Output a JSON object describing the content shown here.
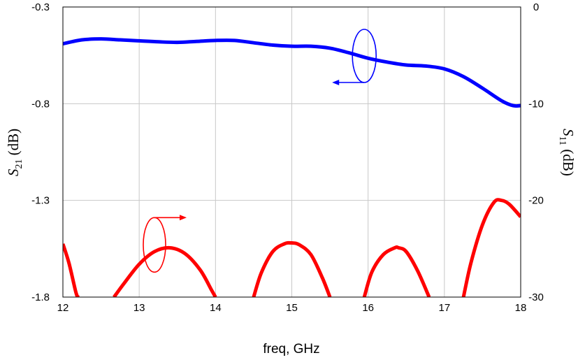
{
  "chart_data": {
    "type": "line",
    "title": "",
    "xlabel": "freq, GHz",
    "ylabel_left": {
      "symbol": "S",
      "subscript": "21",
      "unit": " (dB)"
    },
    "ylabel_right": {
      "symbol": "S",
      "subscript": "11",
      "unit": " (dB)"
    },
    "xlim": [
      12,
      18
    ],
    "ylim_left": [
      -1.8,
      -0.3
    ],
    "ylim_right": [
      -30,
      0
    ],
    "x_ticks": [
      "12",
      "13",
      "14",
      "15",
      "16",
      "17",
      "18"
    ],
    "y_ticks_left": [
      "-0.3",
      "-0.8",
      "-1.3",
      "-1.8"
    ],
    "y_ticks_right": [
      "0",
      "-10",
      "-20",
      "-30"
    ],
    "grid": true,
    "series": [
      {
        "axis": "left",
        "color": "#0000ff",
        "x": [
          12.0,
          12.25,
          12.5,
          12.75,
          13.0,
          13.25,
          13.5,
          13.75,
          14.0,
          14.25,
          14.5,
          14.75,
          15.0,
          15.25,
          15.5,
          15.75,
          16.0,
          16.25,
          16.5,
          16.75,
          17.0,
          17.25,
          17.5,
          17.75,
          17.9,
          18.0
        ],
        "y": [
          -0.49,
          -0.47,
          -0.465,
          -0.47,
          -0.475,
          -0.48,
          -0.483,
          -0.478,
          -0.473,
          -0.473,
          -0.485,
          -0.497,
          -0.503,
          -0.503,
          -0.513,
          -0.537,
          -0.565,
          -0.585,
          -0.6,
          -0.605,
          -0.62,
          -0.66,
          -0.72,
          -0.785,
          -0.81,
          -0.81
        ]
      },
      {
        "axis": "right",
        "color": "#ff0000",
        "segments": [
          {
            "x": [
              12.0,
              12.08,
              12.17,
              12.2
            ],
            "y": [
              -24.5,
              -26.5,
              -29.5,
              -30
            ]
          },
          {
            "x": [
              12.67,
              12.8,
              13.0,
              13.2,
              13.4,
              13.6,
              13.8,
              13.95,
              14.0
            ],
            "y": [
              -30,
              -28.6,
              -26.6,
              -25.3,
              -24.9,
              -25.5,
              -27.2,
              -29.3,
              -30
            ]
          },
          {
            "x": [
              14.5,
              14.6,
              14.75,
              14.9,
              15.0,
              15.1,
              15.25,
              15.4,
              15.5
            ],
            "y": [
              -30,
              -27.5,
              -25.3,
              -24.5,
              -24.4,
              -24.6,
              -25.6,
              -28.0,
              -30
            ]
          },
          {
            "x": [
              15.95,
              16.05,
              16.2,
              16.35,
              16.4,
              16.5,
              16.65,
              16.8
            ],
            "y": [
              -30,
              -27.4,
              -25.6,
              -24.9,
              -24.9,
              -25.3,
              -27.3,
              -30
            ]
          },
          {
            "x": [
              17.25,
              17.35,
              17.5,
              17.65,
              17.75,
              17.85,
              18.0
            ],
            "y": [
              -30,
              -26.4,
              -22.5,
              -20.2,
              -20.0,
              -20.4,
              -21.7
            ]
          }
        ]
      }
    ],
    "annotations": [
      {
        "series": 0,
        "points_to": "left-axis",
        "color": "#0000ff"
      },
      {
        "series": 1,
        "points_to": "right-axis",
        "color": "#ff0000"
      }
    ]
  }
}
